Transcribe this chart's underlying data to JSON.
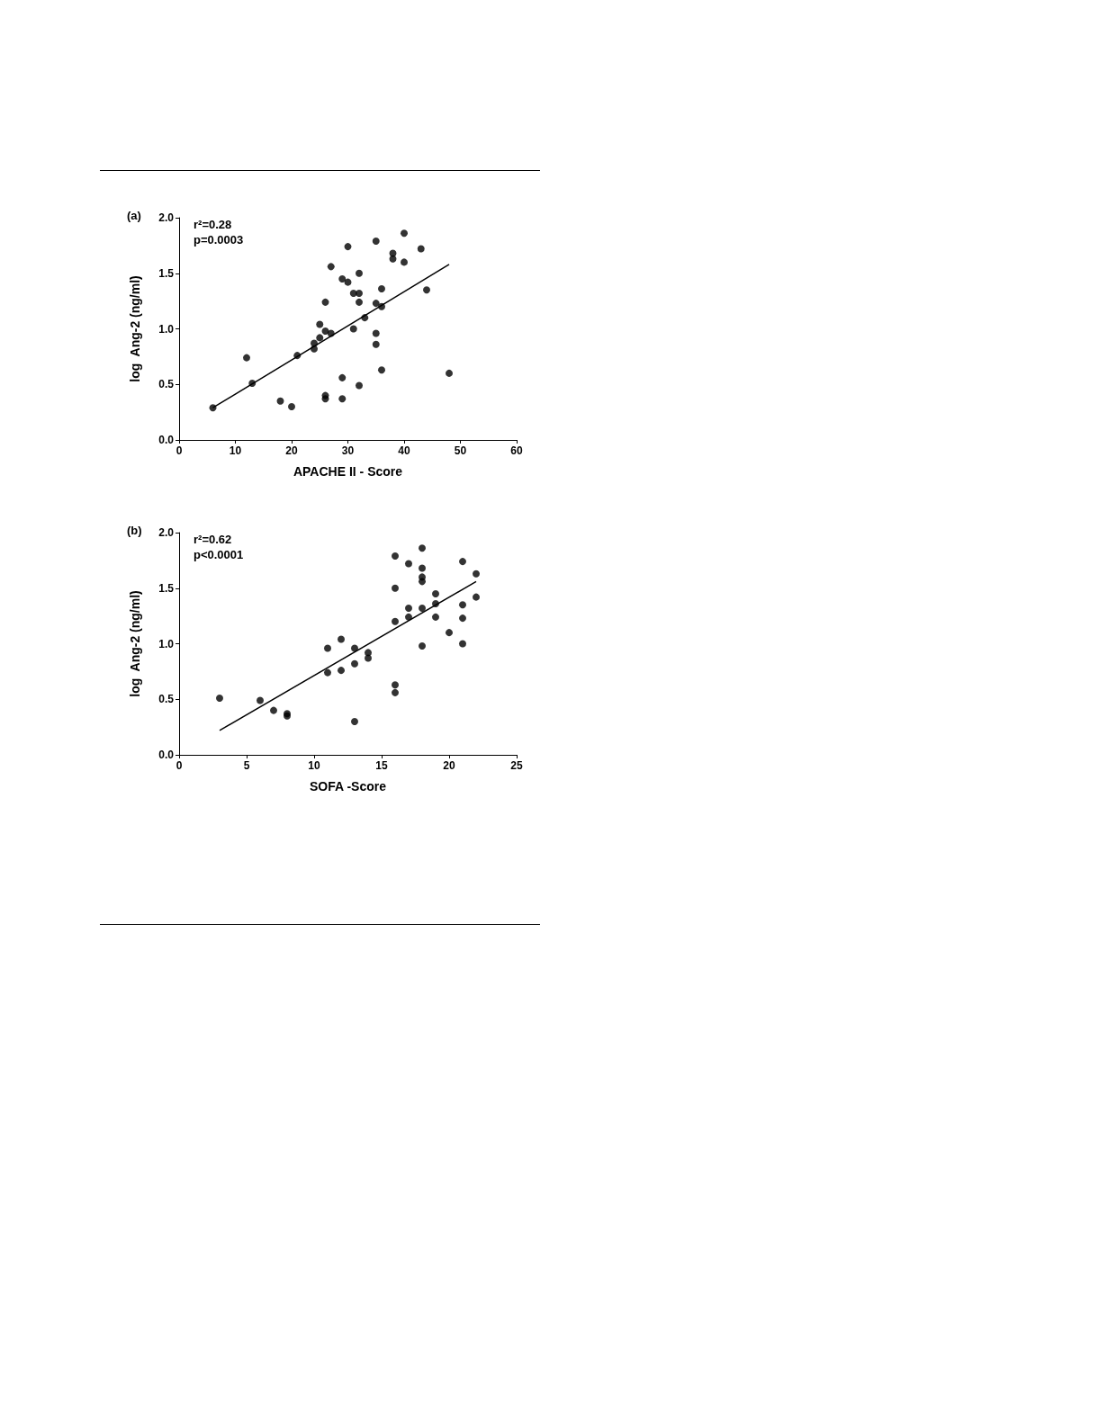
{
  "chart_data": [
    {
      "type": "scatter",
      "title": "(a)",
      "xlabel": "APACHE II - Score",
      "ylabel": "log  Ang-2 (ng/ml)",
      "annotations": [
        "r²=0.28",
        "p=0.0003"
      ],
      "xlim": [
        0,
        60
      ],
      "xticks": [
        0,
        10,
        20,
        30,
        40,
        50,
        60
      ],
      "ylim": [
        0,
        2
      ],
      "yticks": [
        {
          "value": 0,
          "label": "0.0"
        },
        {
          "value": 0.5,
          "label": "0.5"
        },
        {
          "value": 1,
          "label": "1.0"
        },
        {
          "value": 1.5,
          "label": "1.5"
        },
        {
          "value": 2,
          "label": "2.0"
        }
      ],
      "grid": false,
      "marker": "circle",
      "series": [
        {
          "color": "#000000",
          "x": [
            6,
            12,
            13,
            18,
            20,
            21,
            24,
            24,
            25,
            25,
            26,
            26,
            26,
            26,
            27,
            27,
            29,
            29,
            29,
            30,
            30,
            31,
            31,
            32,
            32,
            32,
            32,
            33,
            35,
            35,
            35,
            35,
            36,
            36,
            36,
            38,
            38,
            40,
            40,
            43,
            44,
            48
          ],
          "values": [
            0.29,
            0.74,
            0.51,
            0.35,
            0.3,
            0.76,
            0.82,
            0.87,
            1.04,
            0.92,
            1.24,
            0.98,
            0.4,
            0.37,
            1.56,
            0.96,
            1.45,
            0.56,
            0.37,
            1.74,
            1.42,
            1.32,
            1.0,
            1.5,
            1.32,
            1.24,
            0.49,
            1.1,
            1.79,
            1.23,
            0.96,
            0.86,
            1.36,
            1.2,
            0.63,
            1.68,
            1.63,
            1.86,
            1.6,
            1.72,
            1.35,
            0.6
          ]
        },
        {
          "type": "line",
          "color": "#000000",
          "marker": "none",
          "line_style": "solid",
          "x": [
            6,
            48
          ],
          "values": [
            0.29,
            1.58
          ]
        }
      ]
    },
    {
      "type": "scatter",
      "title": "(b)",
      "xlabel": "SOFA -Score",
      "ylabel": "log  Ang-2 (ng/ml)",
      "annotations": [
        "r²=0.62",
        "p<0.0001"
      ],
      "xlim": [
        0,
        25
      ],
      "xticks": [
        0,
        5,
        10,
        15,
        20,
        25
      ],
      "ylim": [
        0,
        2
      ],
      "yticks": [
        {
          "value": 0,
          "label": "0.0"
        },
        {
          "value": 0.5,
          "label": "0.5"
        },
        {
          "value": 1,
          "label": "1.0"
        },
        {
          "value": 1.5,
          "label": "1.5"
        },
        {
          "value": 2,
          "label": "2.0"
        }
      ],
      "grid": false,
      "marker": "circle",
      "series": [
        {
          "color": "#000000",
          "x": [
            3,
            6,
            7,
            8,
            8,
            11,
            11,
            12,
            12,
            13,
            13,
            13,
            14,
            14,
            16,
            16,
            16,
            16,
            16,
            17,
            17,
            17,
            18,
            18,
            18,
            18,
            18,
            18,
            19,
            19,
            19,
            20,
            21,
            21,
            21,
            21,
            22,
            22
          ],
          "values": [
            0.51,
            0.49,
            0.4,
            0.37,
            0.35,
            0.96,
            0.74,
            1.04,
            0.76,
            0.96,
            0.82,
            0.3,
            0.92,
            0.87,
            1.79,
            1.5,
            1.2,
            0.63,
            0.56,
            1.72,
            1.32,
            1.24,
            1.86,
            1.68,
            1.6,
            1.56,
            1.32,
            0.98,
            1.45,
            1.36,
            1.24,
            1.1,
            1.74,
            1.35,
            1.23,
            1.0,
            1.63,
            1.42
          ]
        },
        {
          "type": "line",
          "color": "#000000",
          "marker": "none",
          "line_style": "solid",
          "x": [
            3,
            22
          ],
          "values": [
            0.22,
            1.56
          ]
        }
      ]
    }
  ]
}
